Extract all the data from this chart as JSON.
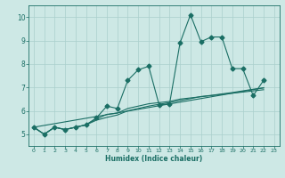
{
  "xlabel": "Humidex (Indice chaleur)",
  "background_color": "#cde8e5",
  "grid_color": "#aacfcc",
  "line_color": "#1a6e64",
  "xlim": [
    -0.5,
    23.5
  ],
  "ylim": [
    4.5,
    10.5
  ],
  "xticks": [
    0,
    1,
    2,
    3,
    4,
    5,
    6,
    7,
    8,
    9,
    10,
    11,
    12,
    13,
    14,
    15,
    16,
    17,
    18,
    19,
    20,
    21,
    22,
    23
  ],
  "yticks": [
    5,
    6,
    7,
    8,
    9,
    10
  ],
  "series1_x": [
    0,
    1,
    2,
    3,
    4,
    5,
    6,
    7,
    8,
    9,
    10,
    11,
    12,
    13,
    14,
    15,
    16,
    17,
    18,
    19,
    20,
    21,
    22
  ],
  "series1_y": [
    5.3,
    5.0,
    5.3,
    5.2,
    5.3,
    5.4,
    5.7,
    6.2,
    6.1,
    7.3,
    7.75,
    7.9,
    6.25,
    6.3,
    8.9,
    10.1,
    8.95,
    9.15,
    9.15,
    7.8,
    7.8,
    6.65,
    7.3
  ],
  "series2_x": [
    0,
    1,
    2,
    3,
    4,
    5,
    6,
    7,
    8,
    9,
    10,
    11,
    12,
    13,
    14,
    15,
    16,
    17,
    18,
    19,
    20,
    21,
    22
  ],
  "series2_y": [
    5.3,
    5.0,
    5.3,
    5.2,
    5.3,
    5.4,
    5.65,
    5.85,
    5.9,
    6.1,
    6.2,
    6.3,
    6.35,
    6.4,
    6.5,
    6.55,
    6.6,
    6.65,
    6.7,
    6.75,
    6.8,
    6.85,
    6.9
  ],
  "series3_x": [
    0,
    1,
    2,
    3,
    4,
    5,
    6,
    7,
    8,
    9,
    10,
    11,
    12,
    13,
    14,
    15,
    16,
    17,
    18,
    19,
    20,
    21,
    22
  ],
  "series3_y": [
    5.3,
    5.0,
    5.3,
    5.2,
    5.3,
    5.4,
    5.6,
    5.72,
    5.82,
    6.0,
    6.1,
    6.2,
    6.28,
    6.35,
    6.44,
    6.52,
    6.61,
    6.66,
    6.72,
    6.78,
    6.85,
    6.92,
    6.98
  ],
  "series4_x": [
    0,
    22
  ],
  "series4_y": [
    5.3,
    6.98
  ]
}
